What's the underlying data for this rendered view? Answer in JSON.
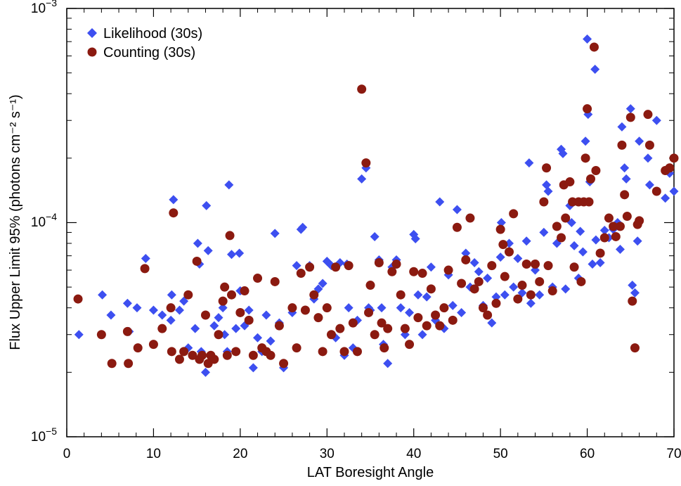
{
  "chart_data": {
    "type": "scatter",
    "title": "",
    "xlabel": "LAT Boresight Angle",
    "ylabel": "Flux Upper Limit 95% (photons cm⁻² s⁻¹)",
    "xlim": [
      0,
      70
    ],
    "ylim": [
      1e-05,
      0.001
    ],
    "yscale": "log",
    "x_ticks": [
      0,
      10,
      20,
      30,
      40,
      50,
      60,
      70
    ],
    "y_tick_labels": [
      {
        "base": "10",
        "exp": "−5",
        "value": 1e-05
      },
      {
        "base": "10",
        "exp": "−4",
        "value": 0.0001
      },
      {
        "base": "10",
        "exp": "−3",
        "value": 0.001
      }
    ],
    "legend_position": "top-left",
    "series": [
      {
        "name": "Likelihood (30s)",
        "marker": "diamond",
        "color": "#3d4ff0",
        "points": [
          [
            1.4,
            3e-05
          ],
          [
            4.1,
            4.6e-05
          ],
          [
            5.1,
            3.7e-05
          ],
          [
            7.0,
            4.2e-05
          ],
          [
            7.2,
            3.1e-05
          ],
          [
            8.1,
            4e-05
          ],
          [
            9.1,
            6.8e-05
          ],
          [
            10.0,
            3.9e-05
          ],
          [
            11.0,
            3.7e-05
          ],
          [
            12.0,
            3.5e-05
          ],
          [
            12.1,
            4.6e-05
          ],
          [
            12.3,
            0.000128
          ],
          [
            13.0,
            3.9e-05
          ],
          [
            13.5,
            4.3e-05
          ],
          [
            14.0,
            2.6e-05
          ],
          [
            14.8,
            3.2e-05
          ],
          [
            15.1,
            8e-05
          ],
          [
            15.3,
            6.4e-05
          ],
          [
            15.5,
            2.5e-05
          ],
          [
            16.0,
            2e-05
          ],
          [
            16.1,
            0.00012
          ],
          [
            16.3,
            7.4e-05
          ],
          [
            17.0,
            3.3e-05
          ],
          [
            17.5,
            3.6e-05
          ],
          [
            18.0,
            4e-05
          ],
          [
            18.2,
            3e-05
          ],
          [
            18.5,
            2.5e-05
          ],
          [
            18.7,
            0.00015
          ],
          [
            19.0,
            7.1e-05
          ],
          [
            19.5,
            3.2e-05
          ],
          [
            19.9,
            7.2e-05
          ],
          [
            20.0,
            4.8e-05
          ],
          [
            20.5,
            3.3e-05
          ],
          [
            21.0,
            3.9e-05
          ],
          [
            21.5,
            2.1e-05
          ],
          [
            22.0,
            2.9e-05
          ],
          [
            22.5,
            2.5e-05
          ],
          [
            23.0,
            3.7e-05
          ],
          [
            23.5,
            2.8e-05
          ],
          [
            24.0,
            8.9e-05
          ],
          [
            24.5,
            3.4e-05
          ],
          [
            25.0,
            2.1e-05
          ],
          [
            26.0,
            3.8e-05
          ],
          [
            26.5,
            6.3e-05
          ],
          [
            27.0,
            9.3e-05
          ],
          [
            27.2,
            9.5e-05
          ],
          [
            28.0,
            6.3e-05
          ],
          [
            28.5,
            4.4e-05
          ],
          [
            29.0,
            4.9e-05
          ],
          [
            29.5,
            5.2e-05
          ],
          [
            30.0,
            6.6e-05
          ],
          [
            30.5,
            6.3e-05
          ],
          [
            31.0,
            2.9e-05
          ],
          [
            31.5,
            6.5e-05
          ],
          [
            32.0,
            2.4e-05
          ],
          [
            32.3,
            6.4e-05
          ],
          [
            32.5,
            4e-05
          ],
          [
            33.0,
            2.6e-05
          ],
          [
            33.5,
            3.5e-05
          ],
          [
            34.0,
            0.00016
          ],
          [
            34.5,
            0.00018
          ],
          [
            34.8,
            4e-05
          ],
          [
            35.0,
            3.9e-05
          ],
          [
            35.5,
            8.6e-05
          ],
          [
            36.0,
            6.7e-05
          ],
          [
            36.3,
            4e-05
          ],
          [
            36.5,
            2.7e-05
          ],
          [
            37.0,
            2.2e-05
          ],
          [
            37.5,
            6.2e-05
          ],
          [
            38.0,
            6.7e-05
          ],
          [
            38.5,
            4e-05
          ],
          [
            39.0,
            3e-05
          ],
          [
            39.5,
            3.8e-05
          ],
          [
            40.0,
            8.8e-05
          ],
          [
            40.2,
            8.4e-05
          ],
          [
            40.5,
            4.6e-05
          ],
          [
            41.0,
            3e-05
          ],
          [
            41.5,
            4.5e-05
          ],
          [
            42.0,
            6.2e-05
          ],
          [
            42.5,
            3.5e-05
          ],
          [
            43.0,
            0.000125
          ],
          [
            43.5,
            3.2e-05
          ],
          [
            44.0,
            5.7e-05
          ],
          [
            44.5,
            4.1e-05
          ],
          [
            45.0,
            0.000115
          ],
          [
            45.5,
            3.8e-05
          ],
          [
            46.0,
            7.2e-05
          ],
          [
            46.5,
            5e-05
          ],
          [
            47.0,
            6.5e-05
          ],
          [
            47.5,
            5.9e-05
          ],
          [
            48.0,
            4.1e-05
          ],
          [
            48.5,
            5.5e-05
          ],
          [
            49.0,
            3.4e-05
          ],
          [
            49.5,
            4.5e-05
          ],
          [
            50.0,
            6.9e-05
          ],
          [
            50.1,
            0.0001
          ],
          [
            50.5,
            4.6e-05
          ],
          [
            51.0,
            8e-05
          ],
          [
            51.5,
            5e-05
          ],
          [
            52.0,
            6.8e-05
          ],
          [
            52.5,
            4.7e-05
          ],
          [
            53.0,
            8.2e-05
          ],
          [
            53.3,
            0.00019
          ],
          [
            53.5,
            4.2e-05
          ],
          [
            54.0,
            6e-05
          ],
          [
            54.5,
            4.6e-05
          ],
          [
            55.0,
            9e-05
          ],
          [
            55.3,
            0.00015
          ],
          [
            55.5,
            0.00014
          ],
          [
            56.0,
            5e-05
          ],
          [
            56.5,
            8e-05
          ],
          [
            57.0,
            0.00022
          ],
          [
            57.2,
            0.00021
          ],
          [
            57.5,
            4.9e-05
          ],
          [
            58.0,
            0.00012
          ],
          [
            58.2,
            0.0001
          ],
          [
            58.5,
            7.8e-05
          ],
          [
            59.0,
            5.5e-05
          ],
          [
            59.2,
            9.1e-05
          ],
          [
            59.5,
            7.3e-05
          ],
          [
            59.8,
            0.00024
          ],
          [
            60.0,
            0.00072
          ],
          [
            60.1,
            0.00032
          ],
          [
            60.3,
            0.000155
          ],
          [
            60.6,
            6.4e-05
          ],
          [
            60.9,
            0.00052
          ],
          [
            61.0,
            8.3e-05
          ],
          [
            61.5,
            6.5e-05
          ],
          [
            62.0,
            9.2e-05
          ],
          [
            62.5,
            8.5e-05
          ],
          [
            63.0,
            9.3e-05
          ],
          [
            63.5,
            0.0001
          ],
          [
            63.8,
            7.5e-05
          ],
          [
            64.0,
            0.00028
          ],
          [
            64.3,
            0.00018
          ],
          [
            64.5,
            0.00016
          ],
          [
            65.0,
            0.00034
          ],
          [
            65.2,
            5.1e-05
          ],
          [
            65.5,
            4.7e-05
          ],
          [
            65.8,
            8.2e-05
          ],
          [
            66.0,
            0.00024
          ],
          [
            67.0,
            0.0002
          ],
          [
            67.2,
            0.00015
          ],
          [
            68.0,
            0.0003
          ],
          [
            69.0,
            0.00013
          ],
          [
            69.5,
            0.00017
          ],
          [
            70.0,
            0.00014
          ]
        ]
      },
      {
        "name": "Counting (30s)",
        "marker": "circle",
        "color": "#8b1a10",
        "points": [
          [
            1.3,
            4.4e-05
          ],
          [
            4.0,
            3e-05
          ],
          [
            5.2,
            2.2e-05
          ],
          [
            7.0,
            3.1e-05
          ],
          [
            7.1,
            2.2e-05
          ],
          [
            8.2,
            2.6e-05
          ],
          [
            9.0,
            6.1e-05
          ],
          [
            10.0,
            2.7e-05
          ],
          [
            11.0,
            3.2e-05
          ],
          [
            12.0,
            4e-05
          ],
          [
            12.1,
            2.5e-05
          ],
          [
            12.3,
            0.000111
          ],
          [
            13.0,
            2.3e-05
          ],
          [
            13.5,
            2.5e-05
          ],
          [
            14.0,
            4.6e-05
          ],
          [
            14.5,
            2.4e-05
          ],
          [
            15.0,
            6.6e-05
          ],
          [
            15.3,
            2.3e-05
          ],
          [
            15.6,
            2.4e-05
          ],
          [
            16.0,
            3.7e-05
          ],
          [
            16.3,
            2.2e-05
          ],
          [
            16.6,
            2.4e-05
          ],
          [
            17.0,
            2.3e-05
          ],
          [
            17.5,
            3e-05
          ],
          [
            18.0,
            4.3e-05
          ],
          [
            18.2,
            5e-05
          ],
          [
            18.5,
            2.4e-05
          ],
          [
            18.8,
            8.7e-05
          ],
          [
            19.0,
            4.6e-05
          ],
          [
            19.5,
            2.5e-05
          ],
          [
            20.0,
            3.8e-05
          ],
          [
            20.5,
            4.8e-05
          ],
          [
            21.0,
            3.5e-05
          ],
          [
            21.5,
            2.4e-05
          ],
          [
            22.0,
            5.5e-05
          ],
          [
            22.5,
            2.6e-05
          ],
          [
            23.0,
            2.5e-05
          ],
          [
            23.5,
            2.4e-05
          ],
          [
            24.0,
            5.3e-05
          ],
          [
            24.5,
            3.3e-05
          ],
          [
            25.0,
            2.2e-05
          ],
          [
            26.0,
            4e-05
          ],
          [
            26.5,
            2.6e-05
          ],
          [
            27.0,
            5.8e-05
          ],
          [
            27.5,
            3.9e-05
          ],
          [
            28.0,
            6.2e-05
          ],
          [
            28.5,
            4.6e-05
          ],
          [
            29.0,
            3.6e-05
          ],
          [
            29.5,
            2.5e-05
          ],
          [
            30.0,
            4e-05
          ],
          [
            30.5,
            3e-05
          ],
          [
            31.0,
            6.2e-05
          ],
          [
            31.5,
            3.2e-05
          ],
          [
            32.0,
            2.5e-05
          ],
          [
            32.5,
            6.3e-05
          ],
          [
            33.0,
            3.4e-05
          ],
          [
            33.5,
            2.5e-05
          ],
          [
            34.0,
            0.00042
          ],
          [
            34.5,
            0.00019
          ],
          [
            34.8,
            3.8e-05
          ],
          [
            35.0,
            5.1e-05
          ],
          [
            35.5,
            3e-05
          ],
          [
            36.0,
            6.5e-05
          ],
          [
            36.3,
            3.4e-05
          ],
          [
            36.6,
            2.6e-05
          ],
          [
            37.0,
            3.2e-05
          ],
          [
            37.5,
            5.9e-05
          ],
          [
            38.0,
            6.4e-05
          ],
          [
            38.5,
            4.6e-05
          ],
          [
            39.0,
            3.2e-05
          ],
          [
            39.5,
            2.7e-05
          ],
          [
            40.0,
            5.9e-05
          ],
          [
            40.5,
            3.6e-05
          ],
          [
            41.0,
            5.8e-05
          ],
          [
            41.5,
            3.3e-05
          ],
          [
            42.0,
            4.9e-05
          ],
          [
            42.5,
            3.7e-05
          ],
          [
            43.0,
            3.3e-05
          ],
          [
            43.5,
            4e-05
          ],
          [
            44.0,
            6e-05
          ],
          [
            44.5,
            3.5e-05
          ],
          [
            45.0,
            9.5e-05
          ],
          [
            45.5,
            5.2e-05
          ],
          [
            46.0,
            6.7e-05
          ],
          [
            46.5,
            0.000105
          ],
          [
            47.0,
            4.9e-05
          ],
          [
            47.5,
            5.3e-05
          ],
          [
            48.0,
            4e-05
          ],
          [
            48.5,
            3.7e-05
          ],
          [
            49.0,
            6.3e-05
          ],
          [
            49.5,
            4.2e-05
          ],
          [
            50.0,
            9.3e-05
          ],
          [
            50.3,
            7.9e-05
          ],
          [
            50.5,
            5.6e-05
          ],
          [
            51.0,
            7.3e-05
          ],
          [
            51.5,
            0.00011
          ],
          [
            52.0,
            4.4e-05
          ],
          [
            52.5,
            5.1e-05
          ],
          [
            53.0,
            6.4e-05
          ],
          [
            53.5,
            4.6e-05
          ],
          [
            54.0,
            6.4e-05
          ],
          [
            54.5,
            5.3e-05
          ],
          [
            55.0,
            0.000125
          ],
          [
            55.3,
            0.00018
          ],
          [
            55.5,
            6.3e-05
          ],
          [
            56.0,
            4.8e-05
          ],
          [
            56.5,
            9.6e-05
          ],
          [
            57.0,
            8.5e-05
          ],
          [
            57.3,
            0.00015
          ],
          [
            57.5,
            0.000105
          ],
          [
            58.0,
            0.000155
          ],
          [
            58.3,
            0.000125
          ],
          [
            58.5,
            6.2e-05
          ],
          [
            59.0,
            0.000125
          ],
          [
            59.3,
            5.3e-05
          ],
          [
            59.6,
            0.000125
          ],
          [
            59.8,
            0.0002
          ],
          [
            60.0,
            0.00034
          ],
          [
            60.2,
            0.000125
          ],
          [
            60.4,
            0.00016
          ],
          [
            60.8,
            0.00066
          ],
          [
            61.0,
            0.000175
          ],
          [
            61.5,
            7.2e-05
          ],
          [
            62.0,
            8.5e-05
          ],
          [
            62.5,
            0.000105
          ],
          [
            63.0,
            9.6e-05
          ],
          [
            63.3,
            8.6e-05
          ],
          [
            63.8,
            9.6e-05
          ],
          [
            64.0,
            0.00023
          ],
          [
            64.3,
            0.000135
          ],
          [
            64.6,
            0.000107
          ],
          [
            65.0,
            0.00031
          ],
          [
            65.2,
            4.3e-05
          ],
          [
            65.5,
            2.6e-05
          ],
          [
            65.8,
            9.8e-05
          ],
          [
            66.0,
            0.000102
          ],
          [
            67.0,
            0.00032
          ],
          [
            67.2,
            0.00023
          ],
          [
            68.0,
            0.00014
          ],
          [
            69.0,
            0.000175
          ],
          [
            69.5,
            0.00018
          ],
          [
            70.0,
            0.0002
          ]
        ]
      }
    ]
  }
}
